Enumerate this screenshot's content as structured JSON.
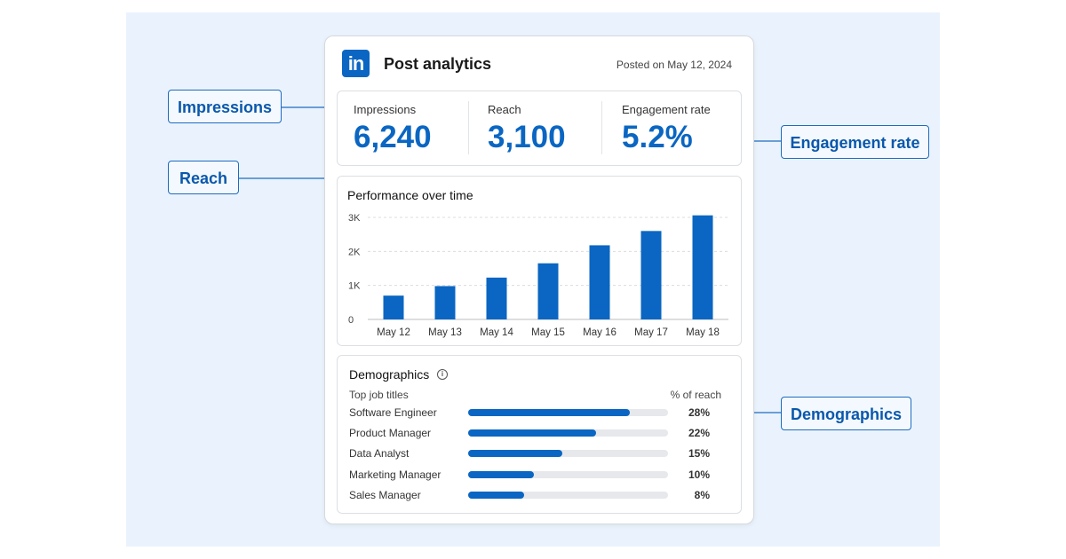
{
  "header": {
    "logo_text": "in",
    "title": "Post analytics",
    "posted": "Posted on May 12, 2024"
  },
  "stats": [
    {
      "label": "Impressions",
      "value": "6,240"
    },
    {
      "label": "Reach",
      "value": "3,100"
    },
    {
      "label": "Engagement rate",
      "value": "5.2%"
    }
  ],
  "callouts": {
    "impressions": "Impressions",
    "reach": "Reach",
    "engagement": "Engagement rate",
    "demographics": "Demographics"
  },
  "performance": {
    "title": "Performance over time"
  },
  "chart_data": {
    "type": "bar",
    "categories": [
      "May 12",
      "May 13",
      "May 14",
      "May 15",
      "May 16",
      "May 17",
      "May 18"
    ],
    "values": [
      700,
      980,
      1230,
      1650,
      2180,
      2600,
      3060
    ],
    "yticks": [
      "0",
      "1K",
      "2K",
      "3K"
    ],
    "ylim": [
      0,
      3000
    ],
    "grid": true,
    "color": "#0a66c2"
  },
  "demographics": {
    "title": "Demographics",
    "info_icon": "info-icon",
    "col_left": "Top job titles",
    "col_right": "% of reach",
    "rows": [
      {
        "label": "Software Engineer",
        "pct": "28%",
        "fraction": 0.81
      },
      {
        "label": "Product Manager",
        "pct": "22%",
        "fraction": 0.64
      },
      {
        "label": "Data Analyst",
        "pct": "15%",
        "fraction": 0.47
      },
      {
        "label": "Marketing Manager",
        "pct": "10%",
        "fraction": 0.33
      },
      {
        "label": "Sales Manager",
        "pct": "8%",
        "fraction": 0.28
      }
    ]
  },
  "colors": {
    "accent": "#0a66c2",
    "background": "#eaf3fd"
  }
}
